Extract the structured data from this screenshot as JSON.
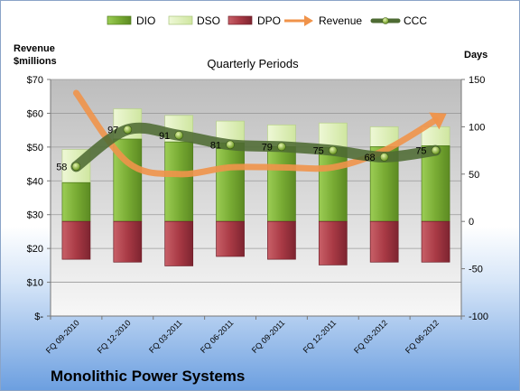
{
  "company": "Monolithic Power Systems",
  "legend": {
    "dio": "DIO",
    "dso": "DSO",
    "dpo": "DPO",
    "revenue": "Revenue",
    "ccc": "CCC"
  },
  "colors": {
    "dio": "#7aaa35",
    "dso": "#e4f2c4",
    "dpo": "#a93a45",
    "revenue": "#f0934a",
    "ccc": "#4e6b33",
    "plot_top": "#bdbdbd",
    "plot_bottom": "#f7f7f7",
    "background_bottom": "#6c9fe0"
  },
  "chart_data": {
    "type": "bar",
    "title": "Quarterly Periods",
    "y_left_title_line1": "Revenue",
    "y_left_title_line2": "$millions",
    "y_right_title": "Days",
    "categories": [
      "FQ 09-2010",
      "FQ 12-2010",
      "FQ 03-2011",
      "FQ 06-2011",
      "FQ 09-2011",
      "FQ 12-2011",
      "FQ 03-2012",
      "FQ 06-2012"
    ],
    "left_axis": {
      "range": [
        0,
        70
      ],
      "ticks": [
        0,
        10,
        20,
        30,
        40,
        50,
        60,
        70
      ],
      "tick_labels": [
        "$-",
        "$10",
        "$20",
        "$30",
        "$40",
        "$50",
        "$60",
        "$70"
      ]
    },
    "right_axis": {
      "range": [
        -100,
        150
      ],
      "ticks": [
        -100,
        -50,
        0,
        50,
        100,
        150
      ],
      "tick_labels": [
        "-100",
        "-50",
        "0",
        "50",
        "100",
        "150"
      ]
    },
    "grid": true,
    "legend_position": "top",
    "series": [
      {
        "name": "DIO",
        "type": "bar",
        "axis": "right",
        "values": [
          41,
          87,
          84,
          83,
          79,
          78,
          79,
          80
        ]
      },
      {
        "name": "DSO",
        "type": "bar",
        "axis": "right",
        "values": [
          35,
          32,
          28,
          23,
          23,
          26,
          21,
          20
        ]
      },
      {
        "name": "DPO",
        "type": "bar",
        "axis": "right",
        "values": [
          -40,
          -43,
          -47,
          -37,
          -40,
          -46,
          -43,
          -43
        ]
      },
      {
        "name": "Revenue",
        "type": "line",
        "axis": "left",
        "values": [
          66,
          45.5,
          42,
          44,
          44,
          44,
          49,
          58
        ]
      },
      {
        "name": "CCC",
        "type": "line",
        "axis": "right",
        "values": [
          58,
          97,
          91,
          81,
          79,
          75,
          68,
          75
        ],
        "labels": [
          "58",
          "97",
          "91",
          "81",
          "79",
          "75",
          "68",
          "75"
        ]
      }
    ]
  }
}
